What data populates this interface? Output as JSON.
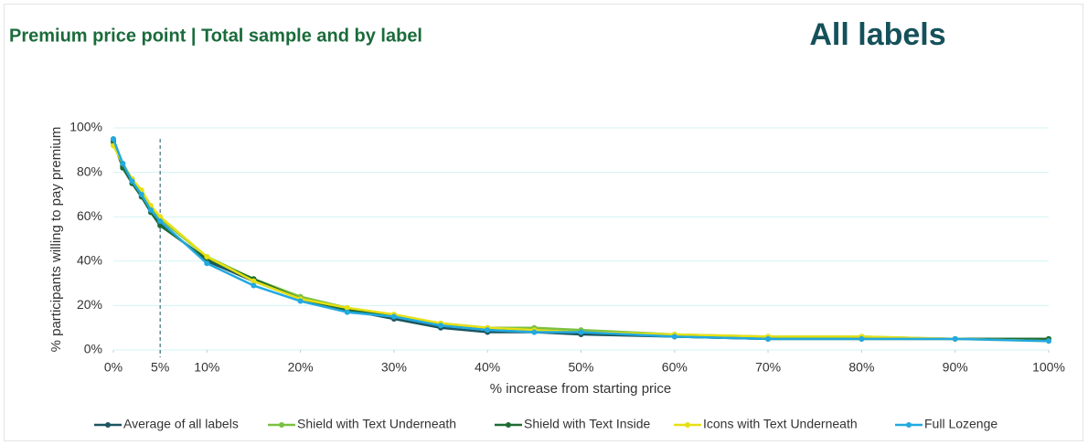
{
  "chart_data": {
    "type": "line",
    "title": "Premium price point | Total sample and by label",
    "subtitle": "All labels",
    "xlabel": "% increase from starting price",
    "ylabel": "% participants willing to pay premium",
    "x": [
      0,
      1,
      2,
      3,
      4,
      5,
      10,
      15,
      20,
      25,
      30,
      35,
      40,
      45,
      50,
      60,
      70,
      80,
      90,
      100
    ],
    "series": [
      {
        "name": "Average of all labels",
        "color": "#1b5560",
        "values": [
          95,
          83,
          76,
          70,
          63,
          57,
          40,
          31,
          23,
          18,
          14,
          10,
          8,
          8,
          7,
          6,
          5,
          5,
          5,
          5
        ]
      },
      {
        "name": "Shield with Text Underneath",
        "color": "#7ac143",
        "values": [
          93,
          84,
          77,
          71,
          64,
          59,
          42,
          32,
          24,
          19,
          15,
          12,
          10,
          10,
          9,
          7,
          6,
          6,
          5,
          5
        ]
      },
      {
        "name": "Shield with Text Inside",
        "color": "#1e6b32",
        "values": [
          94,
          82,
          75,
          69,
          62,
          56,
          41,
          32,
          23,
          18,
          15,
          11,
          9,
          9,
          8,
          6,
          5,
          5,
          5,
          5
        ]
      },
      {
        "name": "Icons with Text Underneath",
        "color": "#e6e014",
        "values": [
          92,
          84,
          77,
          72,
          65,
          60,
          42,
          31,
          23,
          19,
          16,
          12,
          10,
          9,
          8,
          7,
          6,
          6,
          5,
          4
        ]
      },
      {
        "name": "Full Lozenge",
        "color": "#22a9e1",
        "values": [
          95,
          84,
          76,
          70,
          63,
          58,
          39,
          29,
          22,
          17,
          15,
          11,
          9,
          8,
          8,
          6,
          5,
          5,
          5,
          4
        ]
      }
    ],
    "xlim": [
      0,
      100
    ],
    "xticks": [
      {
        "value": 0,
        "label": "0%"
      },
      {
        "value": 5,
        "label": "5%"
      },
      {
        "value": 10,
        "label": "10%"
      },
      {
        "value": 20,
        "label": "20%"
      },
      {
        "value": 30,
        "label": "30%"
      },
      {
        "value": 40,
        "label": "40%"
      },
      {
        "value": 50,
        "label": "50%"
      },
      {
        "value": 60,
        "label": "60%"
      },
      {
        "value": 70,
        "label": "70%"
      },
      {
        "value": 80,
        "label": "80%"
      },
      {
        "value": 90,
        "label": "90%"
      },
      {
        "value": 100,
        "label": "100%"
      }
    ],
    "ylim": [
      0,
      100
    ],
    "yticks": [
      {
        "value": 0,
        "label": "0%"
      },
      {
        "value": 20,
        "label": "20%"
      },
      {
        "value": 40,
        "label": "40%"
      },
      {
        "value": 60,
        "label": "60%"
      },
      {
        "value": 80,
        "label": "80%"
      },
      {
        "value": 100,
        "label": "100%"
      }
    ],
    "reference_line_x": 5,
    "grid": true,
    "legend": "bottom"
  }
}
